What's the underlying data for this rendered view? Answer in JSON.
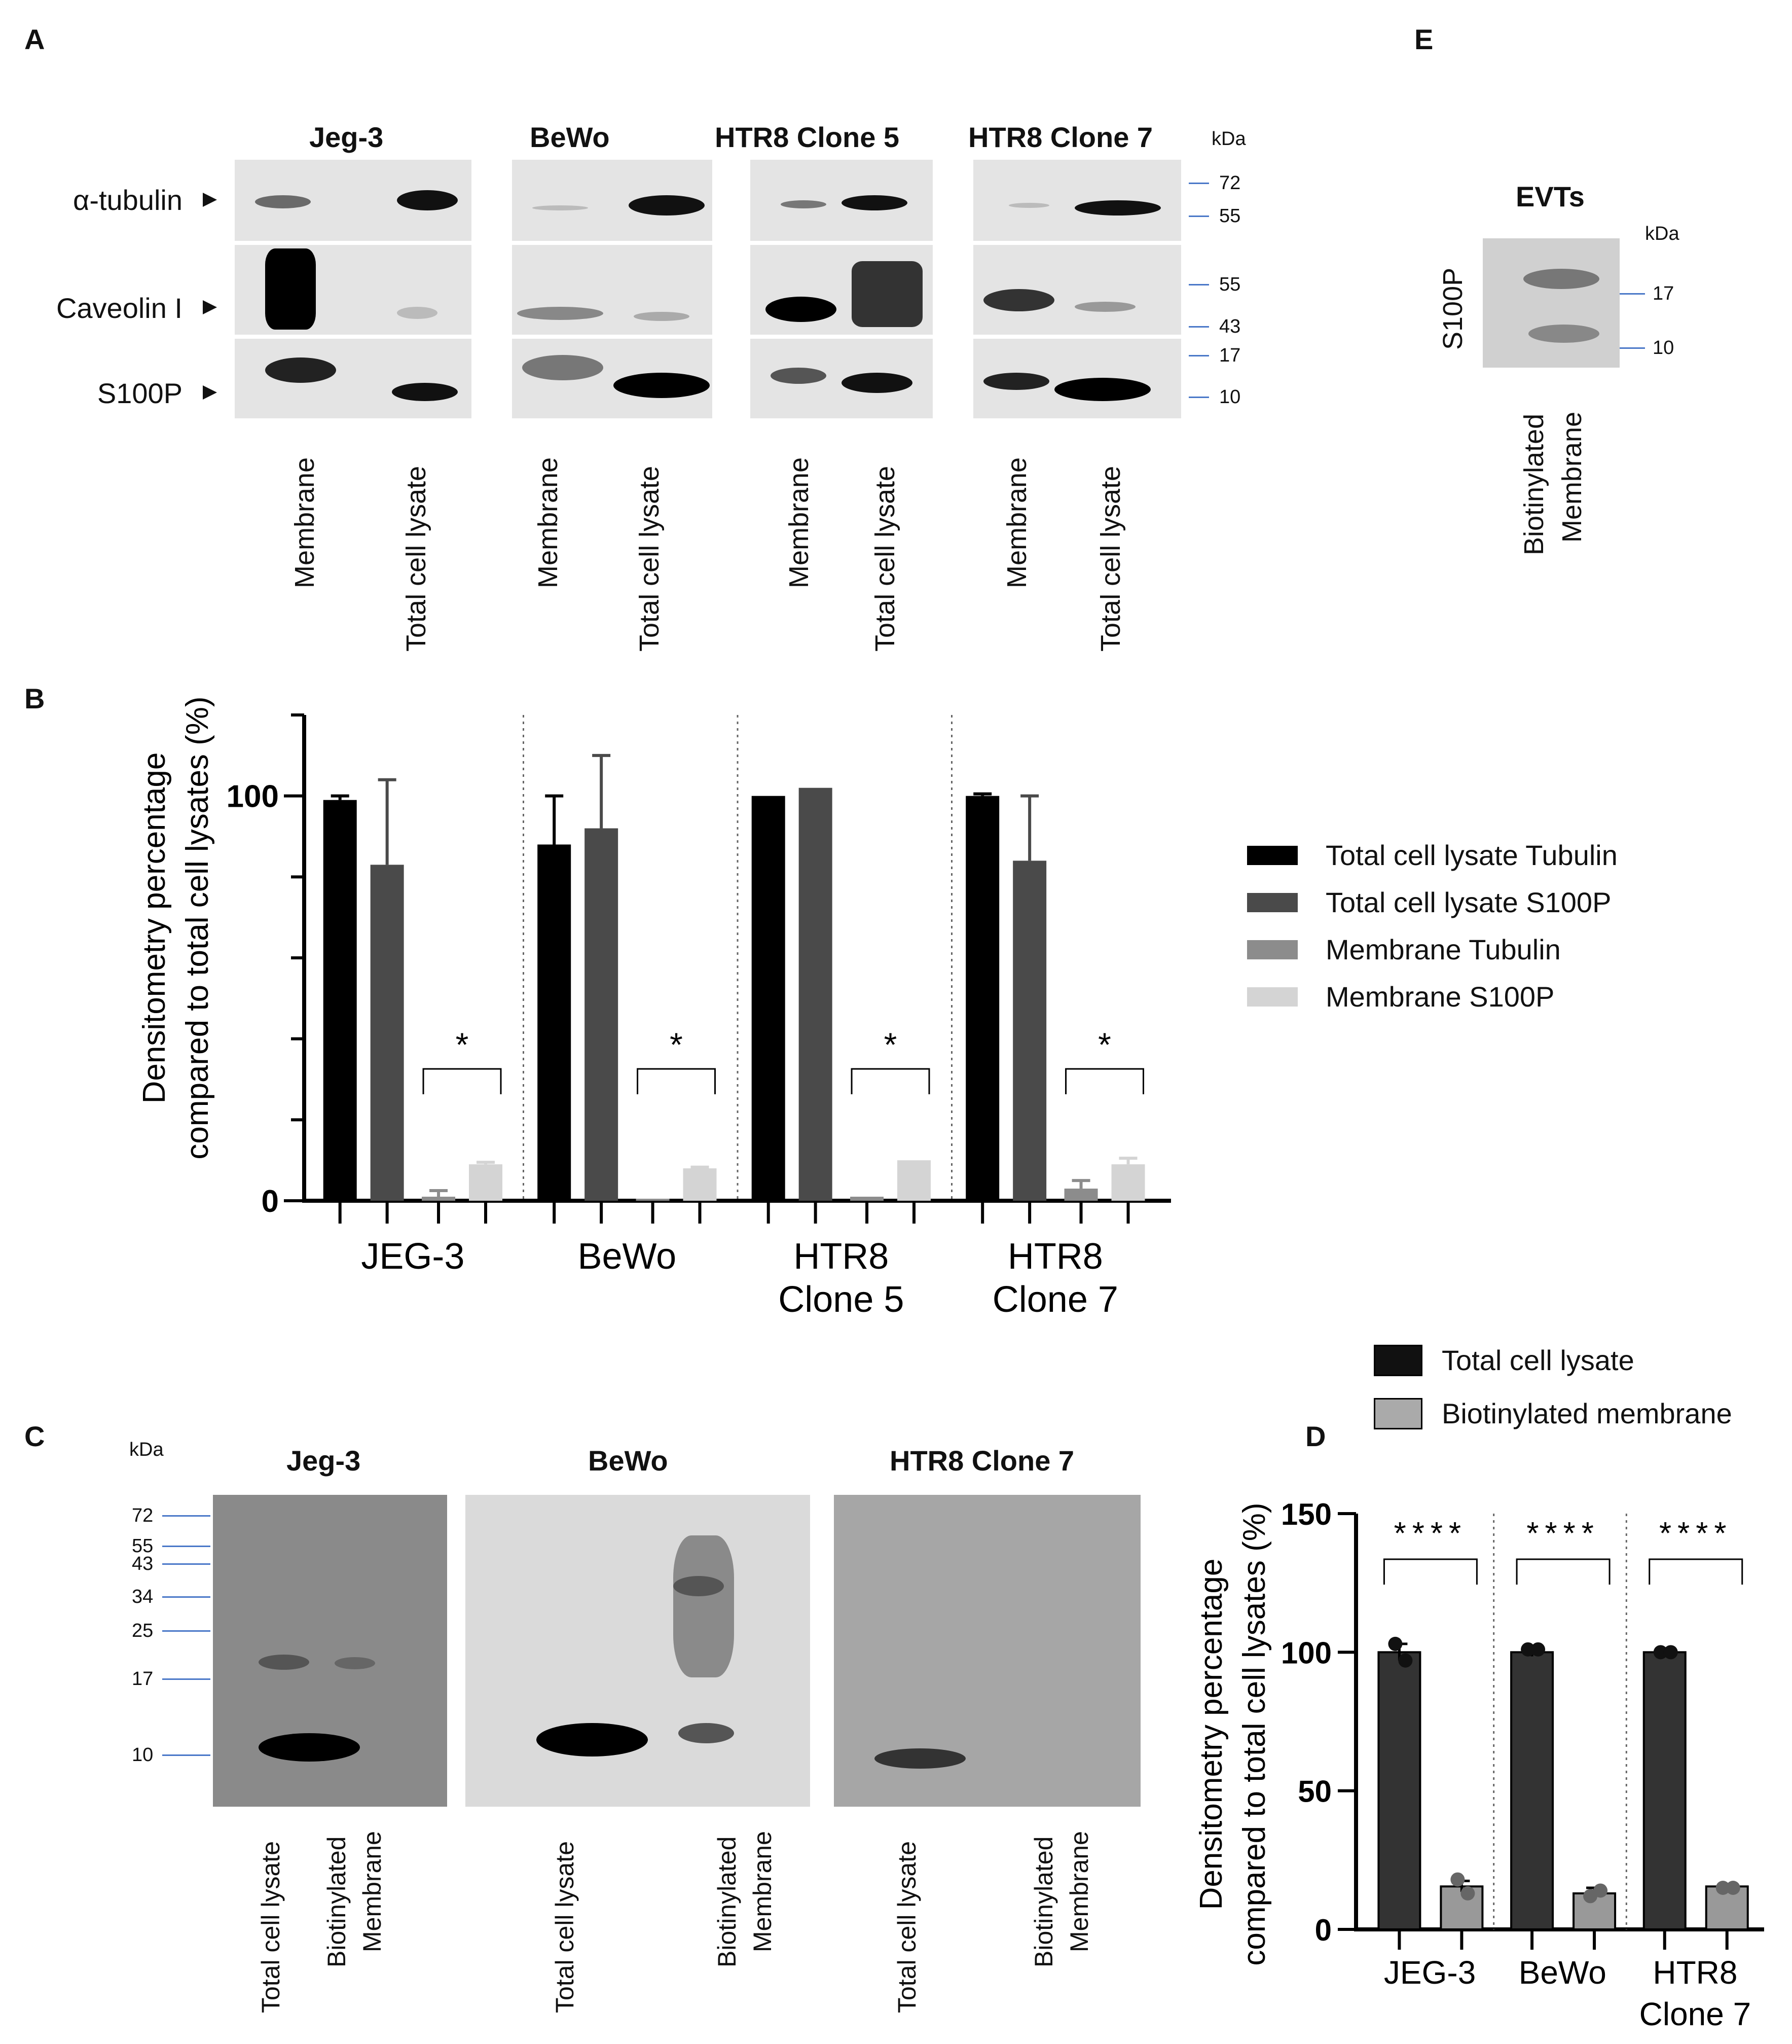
{
  "panels": {
    "A": "A",
    "B": "B",
    "C": "C",
    "D": "D",
    "E": "E"
  },
  "panelA": {
    "titles": [
      "Jeg-3",
      "BeWo",
      "HTR8 Clone 5",
      "HTR8 Clone 7"
    ],
    "rows": [
      "α-tubulin",
      "Caveolin I",
      "S100P"
    ],
    "lanes": [
      "Membrane",
      "Total  cell lysate"
    ],
    "kda_label": "kDa",
    "kda": [
      "72",
      "55",
      "55",
      "43",
      "17",
      "10"
    ]
  },
  "panelE": {
    "title": "EVTs",
    "row": "S100P",
    "kda_label": "kDa",
    "kda": [
      "17",
      "10"
    ],
    "lane": [
      "Biotinylated",
      "Membrane"
    ]
  },
  "panelC": {
    "titles": [
      "Jeg-3",
      "BeWo",
      "HTR8 Clone 7"
    ],
    "kda_label": "kDa",
    "kda": [
      "72",
      "55",
      "43",
      "34",
      "25",
      "17",
      "10"
    ],
    "lane1": "Total cell lysate",
    "lane2": [
      "Biotinylated",
      "Membrane"
    ]
  },
  "chart_data": [
    {
      "type": "bar",
      "categories": [
        "JEG-3",
        "BeWo",
        "HTR8\nClone 5",
        "HTR8\nClone 7"
      ],
      "series": [
        {
          "name": "Total cell lysate Tubulin",
          "values": [
            99,
            88,
            100,
            100
          ],
          "errors": [
            1,
            12,
            0,
            0.5
          ],
          "color": "#000000"
        },
        {
          "name": "Total cell lysate S100P",
          "values": [
            83,
            92,
            102,
            84
          ],
          "errors": [
            21,
            18,
            0,
            16
          ],
          "color": "#4a4a4a"
        },
        {
          "name": "Membrane Tubulin",
          "values": [
            1,
            0.5,
            1,
            3
          ],
          "errors": [
            1.5,
            0,
            0,
            2
          ],
          "color": "#8c8c8c"
        },
        {
          "name": "Membrane S100P",
          "values": [
            9,
            8,
            10,
            9
          ],
          "errors": [
            0.5,
            0.3,
            0,
            1.5
          ],
          "color": "#d4d4d4"
        }
      ],
      "ylabel_line1": "Densitometry percentage",
      "ylabel_line2": "compared to total cell lysates  (%)",
      "ylim": [
        0,
        120
      ],
      "yticks": [
        "0",
        "100"
      ],
      "significance": "*",
      "legend_position": "right"
    },
    {
      "type": "bar",
      "categories": [
        "JEG-3",
        "BeWo",
        "HTR8\nClone 7"
      ],
      "series": [
        {
          "name": "Total cell lysate",
          "values": [
            100,
            100,
            100
          ],
          "errors": [
            3,
            1.5,
            0.5
          ],
          "points": [
            [
              103,
              97
            ],
            [
              101,
              101
            ],
            [
              100,
              100
            ]
          ],
          "color": "#333333"
        },
        {
          "name": "Biotinylated membrane",
          "values": [
            15.5,
            13,
            15.5
          ],
          "errors": [
            2,
            2,
            0.5
          ],
          "points": [
            [
              18,
              13
            ],
            [
              12,
              14
            ],
            [
              15,
              15
            ]
          ],
          "color": "#999999"
        }
      ],
      "ylabel_line1": "Densitometry percentage",
      "ylabel_line2": "compared to total cell lysates  (%)",
      "ylim": [
        0,
        150
      ],
      "yticks": [
        "0",
        "50",
        "100",
        "150"
      ],
      "significance": "****",
      "legend_position": "top"
    }
  ]
}
